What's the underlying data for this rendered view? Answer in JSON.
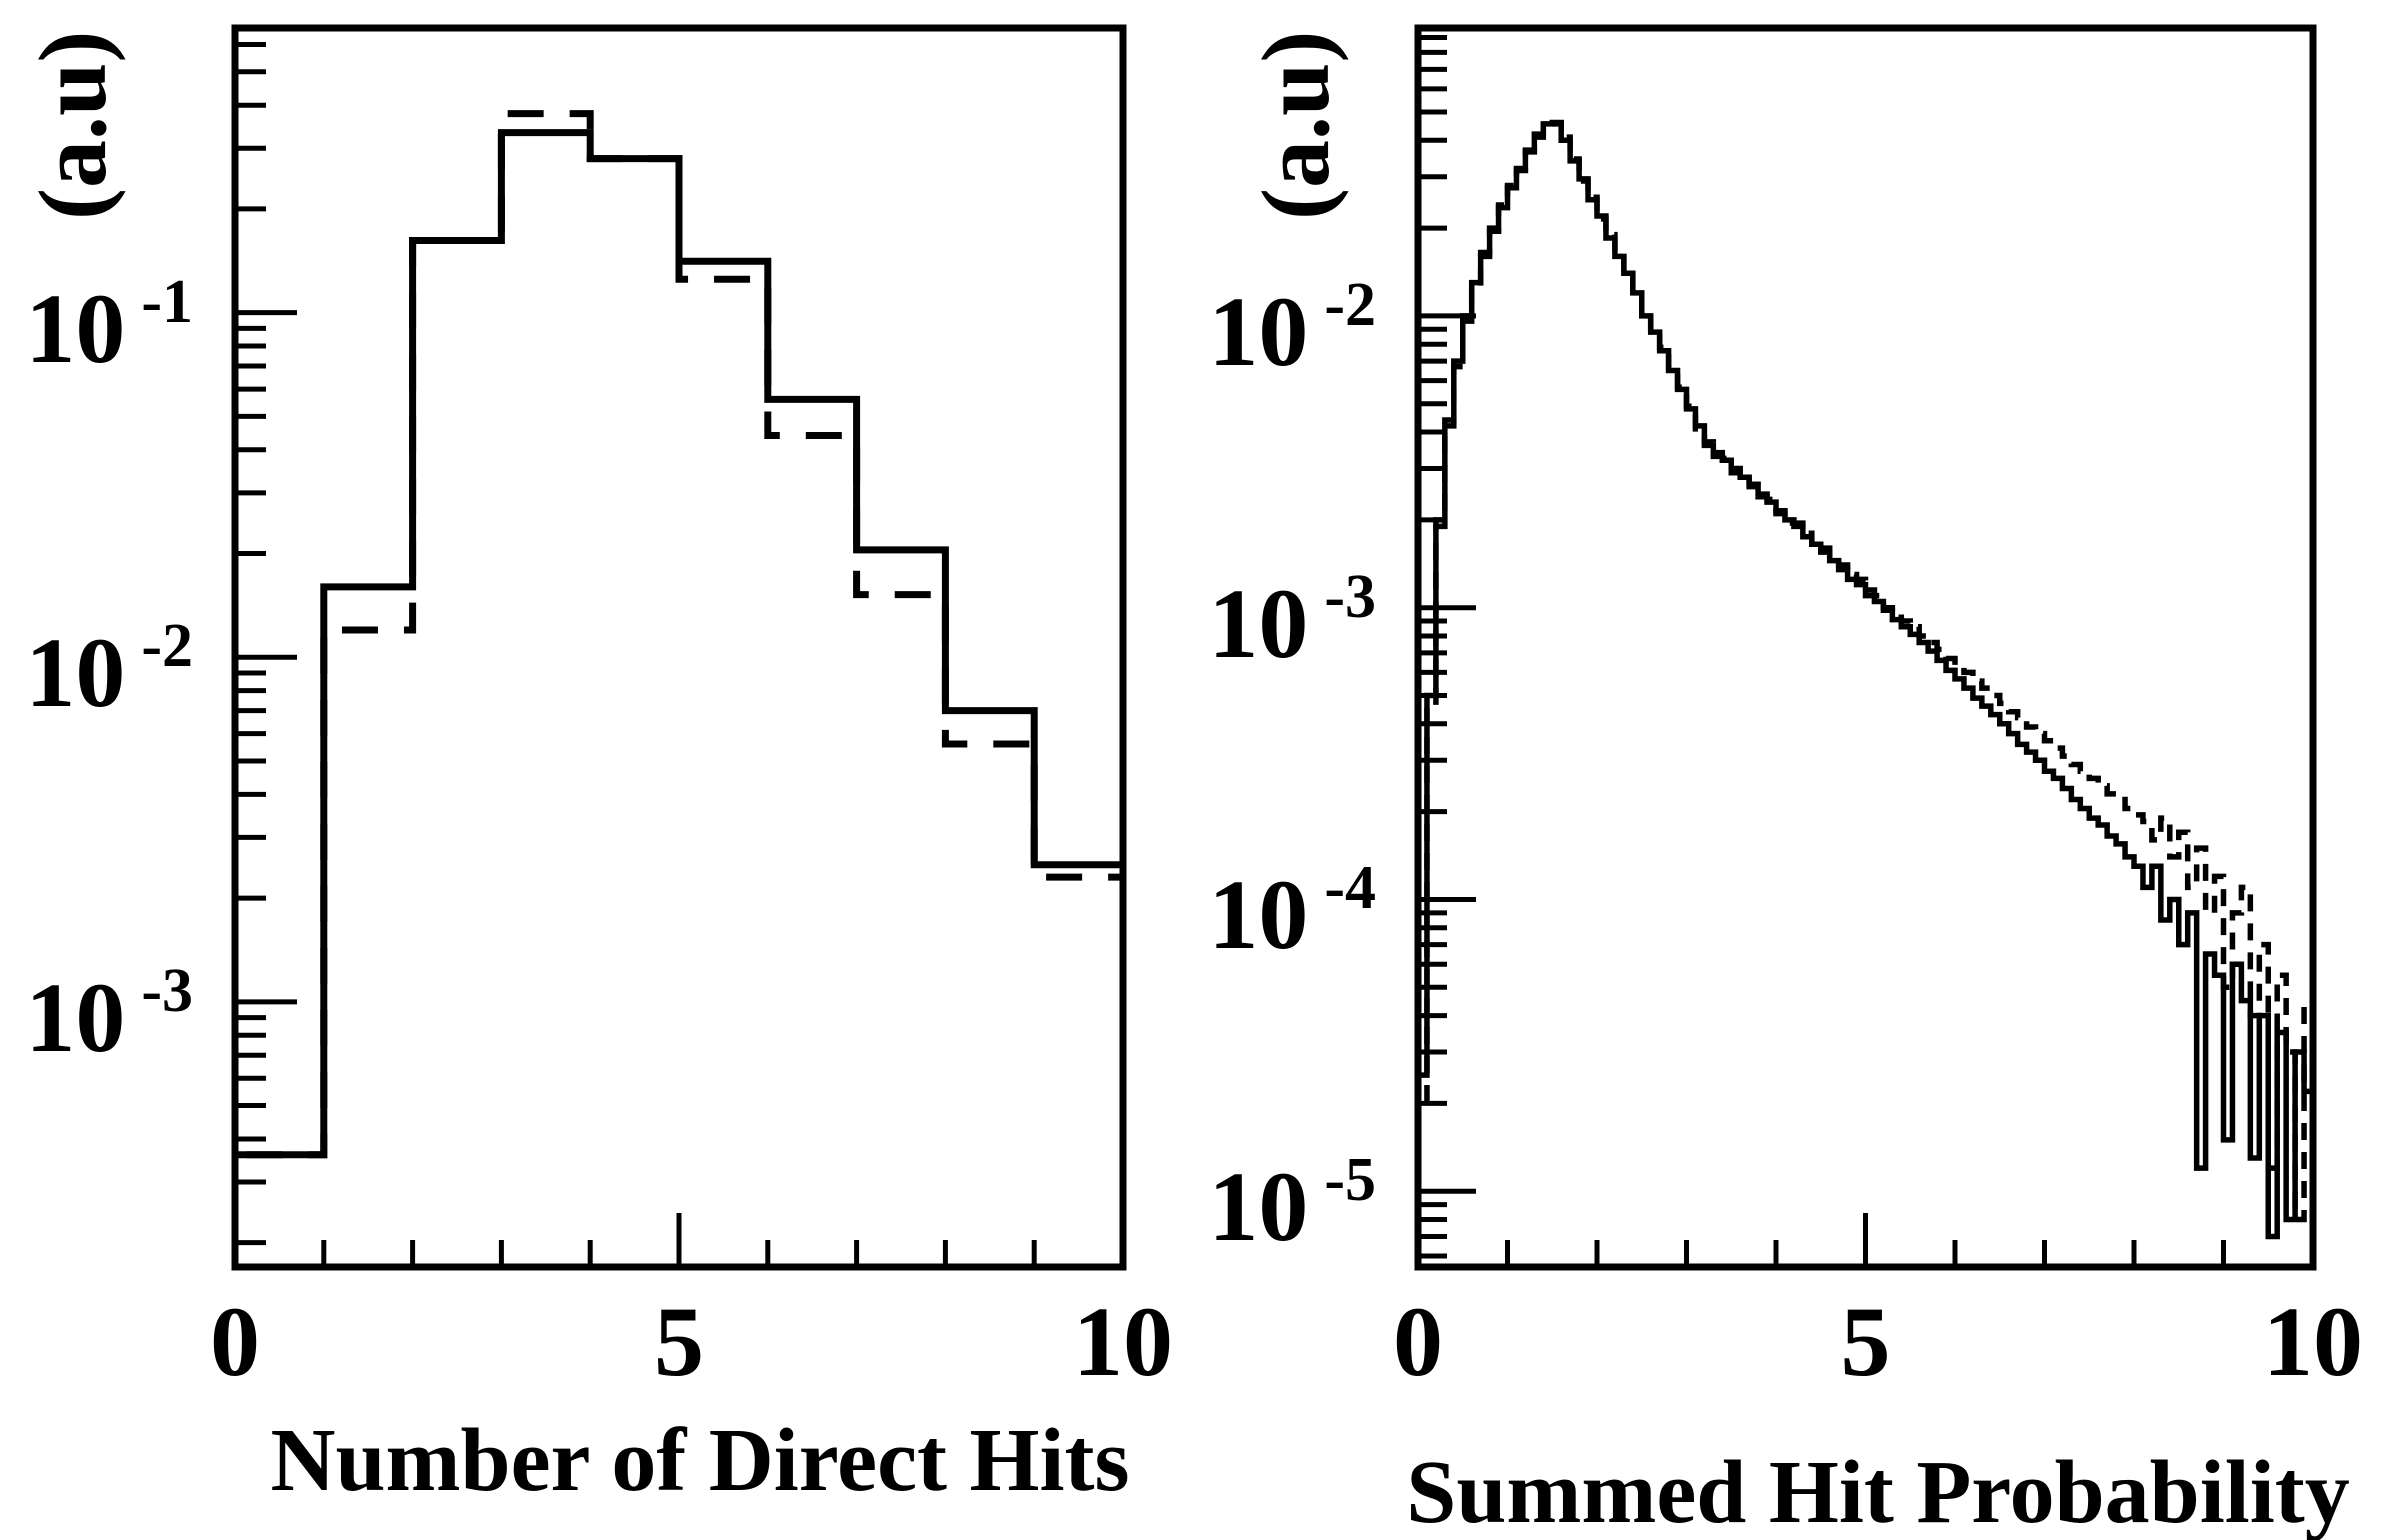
{
  "figure": {
    "background_color": "#ffffff",
    "ink_color": "#000000"
  },
  "chart_data": [
    {
      "type": "histogram-step",
      "panel": "left",
      "xlabel": "Number of Direct Hits",
      "ylabel": "(a.u)",
      "y_scale": "log",
      "xlim": [
        0,
        10
      ],
      "ylim": [
        0.00017,
        0.67
      ],
      "x_major_ticks": [
        0,
        5,
        10
      ],
      "x_tick_labels": [
        "0",
        "5",
        "10"
      ],
      "x_minor_ticks": [
        1,
        2,
        3,
        4,
        6,
        7,
        8,
        9
      ],
      "y_tick_base": "10",
      "y_ticks": [
        {
          "value": 0.1,
          "exp": "-1"
        },
        {
          "value": 0.01,
          "exp": "-2"
        },
        {
          "value": 0.001,
          "exp": "-3"
        }
      ],
      "bin_width": 1,
      "series": [
        {
          "name": "dashed-histogram",
          "style": "dashed",
          "values": [
            0.00036,
            0.012,
            0.162,
            0.378,
            0.28,
            0.125,
            0.044,
            0.0152,
            0.0056,
            0.0023
          ]
        },
        {
          "name": "solid-histogram",
          "style": "solid",
          "values": [
            0.00036,
            0.016,
            0.162,
            0.333,
            0.28,
            0.141,
            0.056,
            0.0205,
            0.007,
            0.0025
          ]
        }
      ]
    },
    {
      "type": "histogram-step",
      "panel": "right",
      "xlabel": "Summed Hit Probability",
      "ylabel": "(a.u)",
      "y_scale": "log",
      "xlim": [
        0,
        10
      ],
      "ylim": [
        5.5e-06,
        0.097
      ],
      "x_major_ticks": [
        0,
        5,
        10
      ],
      "x_tick_labels": [
        "0",
        "5",
        "10"
      ],
      "x_minor_ticks": [
        1,
        2,
        3,
        4,
        6,
        7,
        8,
        9
      ],
      "y_tick_base": "10",
      "y_ticks": [
        {
          "value": 0.01,
          "exp": "-2"
        },
        {
          "value": 0.001,
          "exp": "-3"
        },
        {
          "value": 0.0001,
          "exp": "-4"
        },
        {
          "value": 1e-05,
          "exp": "-5"
        }
      ],
      "bin_width": 0.1,
      "series": [
        {
          "name": "dashed-histogram",
          "style": "dashed",
          "values": [
            2e-05,
            0.00046,
            0.002,
            0.0044,
            0.0067,
            0.01,
            0.0126,
            0.0165,
            0.0195,
            0.024,
            0.028,
            0.0315,
            0.037,
            0.041,
            0.045,
            0.0455,
            0.041,
            0.0345,
            0.029,
            0.0255,
            0.0215,
            0.019,
            0.0165,
            0.0138,
            0.0122,
            0.0105,
            0.0086,
            0.0078,
            0.0064,
            0.0057,
            0.0049,
            0.0041,
            0.0037,
            0.0033,
            0.00325,
            0.003,
            0.00275,
            0.00265,
            0.0024,
            0.00235,
            0.00215,
            0.00195,
            0.00195,
            0.0018,
            0.0016,
            0.0016,
            0.0015,
            0.0014,
            0.0013,
            0.00125,
            0.00115,
            0.0011,
            0.001,
            0.00096,
            0.0009,
            0.00086,
            0.0008,
            0.00076,
            0.00072,
            0.00067,
            0.00063,
            0.0006,
            0.00056,
            0.00053,
            0.0005,
            0.00047,
            0.00044,
            0.00042,
            0.00039,
            0.00037,
            0.00035,
            0.00033,
            0.00031,
            0.00029,
            0.000275,
            0.00026,
            0.000245,
            0.00023,
            0.00022,
            0.000205,
            0.000195,
            0.000185,
            0.00016,
            0.00019,
            0.00014,
            0.00017,
            0.00011,
            0.00015,
            9e-05,
            0.00012,
            5e-05,
            9e-05,
            0.00011,
            4e-05,
            7e-05,
            1.2e-05,
            5.5e-05,
            3e-05,
            8e-06,
            4.5e-05
          ]
        },
        {
          "name": "solid-histogram",
          "style": "solid",
          "values": [
            2.5e-05,
            0.0005,
            0.0019,
            0.0042,
            0.007,
            0.0096,
            0.013,
            0.016,
            0.02,
            0.0235,
            0.0275,
            0.032,
            0.0365,
            0.042,
            0.0455,
            0.046,
            0.04,
            0.034,
            0.0295,
            0.025,
            0.022,
            0.0185,
            0.016,
            0.014,
            0.012,
            0.01,
            0.0088,
            0.0076,
            0.0065,
            0.0056,
            0.0048,
            0.0042,
            0.0036,
            0.0034,
            0.0032,
            0.0029,
            0.0028,
            0.0026,
            0.00245,
            0.0023,
            0.0021,
            0.002,
            0.0019,
            0.00175,
            0.00165,
            0.00155,
            0.00145,
            0.00135,
            0.00125,
            0.0012,
            0.0011,
            0.00105,
            0.00098,
            0.00091,
            0.00086,
            0.00081,
            0.00076,
            0.00071,
            0.00066,
            0.00061,
            0.00057,
            0.00053,
            0.00049,
            0.00046,
            0.00043,
            0.0004,
            0.00037,
            0.00034,
            0.00032,
            0.0003,
            0.000275,
            0.00026,
            0.00024,
            0.00022,
            0.000205,
            0.00019,
            0.00018,
            0.000165,
            0.000155,
            0.00014,
            0.00013,
            0.00011,
            0.00013,
            8.5e-05,
            0.0001,
            7e-05,
            9e-05,
            1.2e-05,
            6.5e-05,
            5.5e-05,
            1.5e-05,
            6e-05,
            4.5e-05,
            1.3e-05,
            4e-05,
            7e-06,
            3.5e-05,
            8e-06,
            3e-05,
            2.2e-05
          ]
        }
      ]
    }
  ]
}
